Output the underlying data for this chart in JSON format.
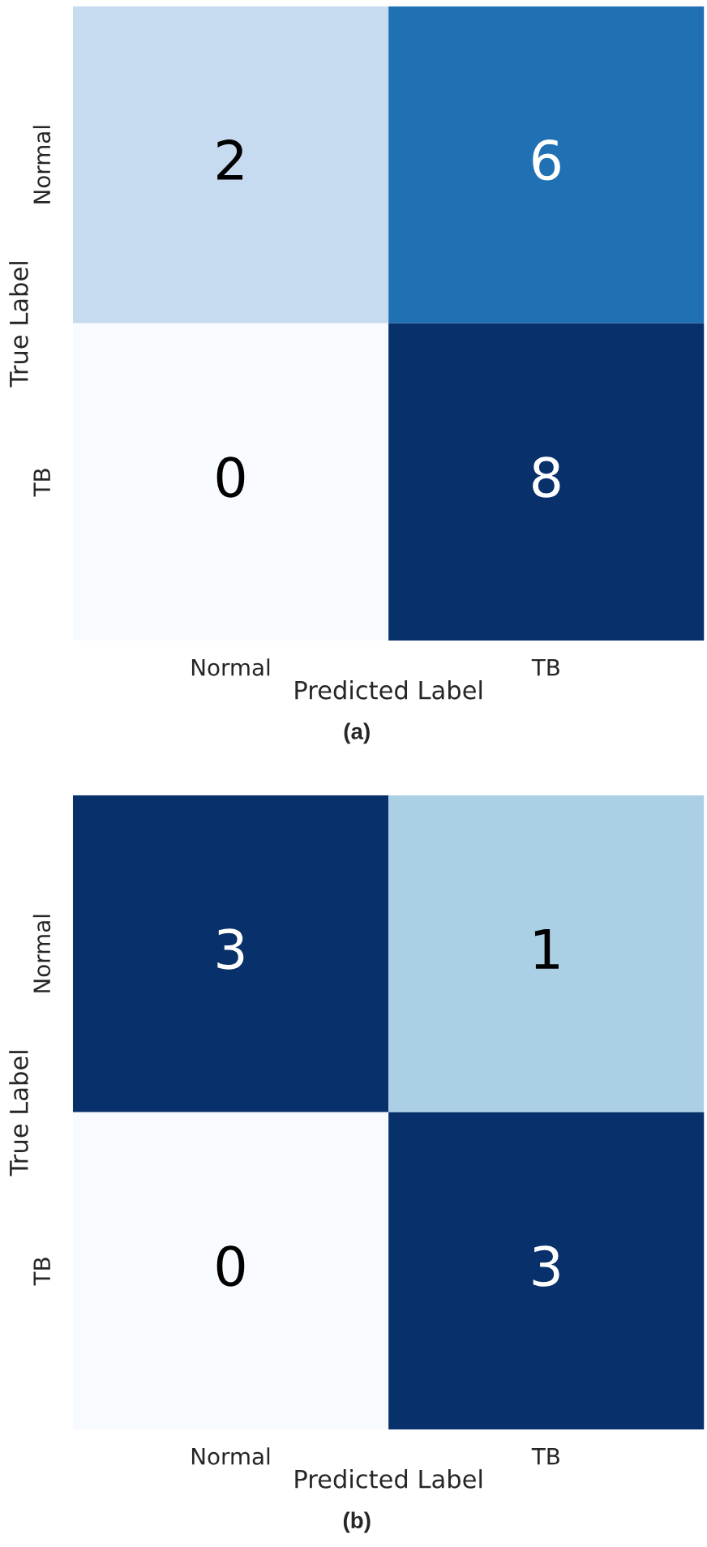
{
  "chart_data": [
    {
      "type": "heatmap",
      "categories": [
        "Normal",
        "TB"
      ],
      "y_categories": [
        "Normal",
        "TB"
      ],
      "cells": [
        [
          2,
          6
        ],
        [
          0,
          8
        ]
      ],
      "data_labels": true,
      "xlabel": "Predicted Label",
      "ylabel": "True Label",
      "annotations": [
        "(a)"
      ]
    },
    {
      "type": "heatmap",
      "categories": [
        "Normal",
        "TB"
      ],
      "y_categories": [
        "Normal",
        "TB"
      ],
      "cells": [
        [
          3,
          1
        ],
        [
          0,
          3
        ]
      ],
      "data_labels": true,
      "xlabel": "Predicted Label",
      "ylabel": "True Label",
      "annotations": [
        "(b)"
      ]
    }
  ]
}
